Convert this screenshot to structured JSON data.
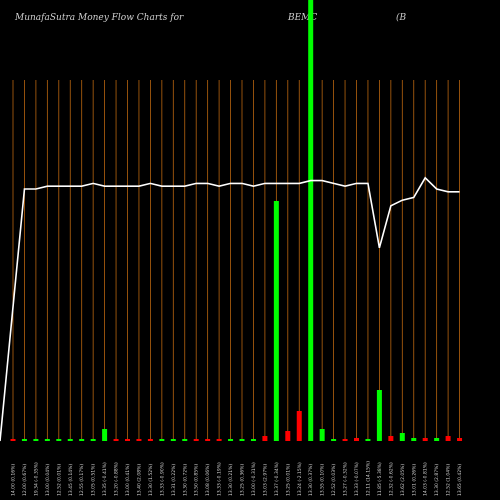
{
  "header": {
    "title": "MunafaSutra  Money Flow  Charts for",
    "ticker": "BEMC",
    "paren": "(B"
  },
  "colors": {
    "background": "#000000",
    "grid": "#b8650f",
    "up": "#00ff00",
    "down": "#ff0000",
    "line": "#ffffff"
  },
  "chart_data": {
    "type": "bar",
    "grid": true,
    "x_tick_labels": [
      "14.00 (0.16%)",
      "12.00 (0.67%)",
      "19.34 (-0.35%)",
      "13.00 (0.04%)",
      "12.52 (0.01%)",
      "13.45 (0.14%)",
      "12.55 (0.17%)",
      "13.05 (0.51%)",
      "13.35 (-0.41%)",
      "13.20 (-0.88%)",
      "13.00 (0.41%)",
      "13.40 (2.08%)",
      "13.30 (1.52%)",
      "13.33 (-0.90%)",
      "13.31 (0.22%)",
      "13.30 (0.72%)",
      "13.50 (0.85%)",
      "13.08 (0.06%)",
      "13.33 (-0.19%)",
      "13.30 (0.21%)",
      "13.25 (0.36%)",
      "13.00 (-0.31%)",
      "13.03 (2.97%)",
      "13.37 (-0.34%)",
      "13.25 (0.01%)",
      "13.24 (-2.15%)",
      "13.30 (0.37%)",
      "13.55 (0.10%)",
      "12.52 (0.03%)",
      "13.27 (-0.32%)",
      "13.33 (-0.07%)",
      "12.11 (14.15%)",
      "11.85 (-5.38%)",
      "12.32 (-0.62%)",
      "13.62 (2.05%)",
      "13.01 (0.26%)",
      "14.03 (-0.81%)",
      "13.30 (2.87%)",
      "12.52 (1.04%)",
      "13.65 (0.42%)"
    ],
    "bar_values": [
      2,
      2,
      2,
      2,
      2,
      2,
      2,
      2,
      12,
      2,
      2,
      2,
      2,
      2,
      2,
      2,
      2,
      2,
      2,
      2,
      2,
      2,
      5,
      240,
      10,
      30,
      450,
      12,
      2,
      2,
      3,
      2,
      51,
      5,
      8,
      3,
      3,
      3,
      5,
      3
    ],
    "bar_direction": [
      "down",
      "up",
      "up",
      "up",
      "up",
      "up",
      "up",
      "up",
      "up",
      "down",
      "down",
      "down",
      "down",
      "up",
      "up",
      "up",
      "down",
      "down",
      "down",
      "up",
      "up",
      "up",
      "down",
      "up",
      "down",
      "down",
      "up",
      "up",
      "up",
      "down",
      "down",
      "up",
      "up",
      "down",
      "up",
      "up",
      "down",
      "up",
      "down",
      "down"
    ],
    "bar_max": 255,
    "line_values": [
      0,
      90,
      90,
      91,
      91,
      91,
      91,
      92,
      91,
      91,
      91,
      91,
      92,
      91,
      91,
      91,
      92,
      92,
      91,
      92,
      92,
      91,
      92,
      92,
      92,
      92,
      93,
      93,
      92,
      91,
      92,
      92,
      69,
      84,
      86,
      87,
      94,
      90,
      89,
      89
    ],
    "line_max": 100
  }
}
